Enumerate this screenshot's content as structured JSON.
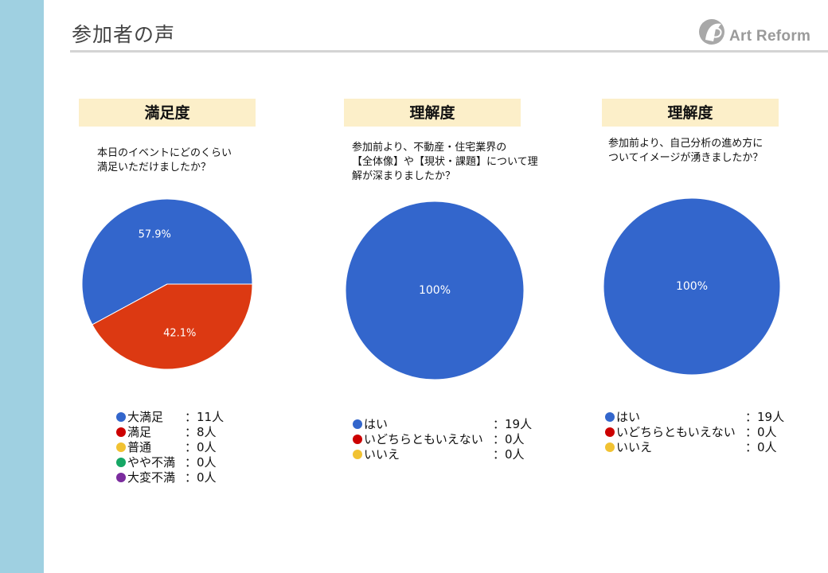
{
  "page": {
    "title": "参加者の声"
  },
  "logo": {
    "text": "Art Reform"
  },
  "colors": {
    "sidebar": "#9fd0e1",
    "header_bg": "#fcefc9",
    "blue": "#3366cc",
    "red": "#dc3912",
    "orange": "#ff9900",
    "green": "#109618",
    "purple": "#990099"
  },
  "panels": [
    {
      "header": "満足度",
      "question": "本日のイベントにどのくらい\n満足いただけましたか？"
    },
    {
      "header": "理解度",
      "question": "参加前より、不動産・住宅業界の\n【全体像】や【現状・課題】について理\n解が深まりましたか？"
    },
    {
      "header": "理解度",
      "question": "参加前より、自己分析の進め方に\nついてイメージが湧きましたか？"
    }
  ],
  "chart_data": [
    {
      "type": "pie",
      "title": "満足度",
      "slices": [
        {
          "label": "大満足",
          "value": 57.9,
          "color": "#3366cc",
          "display": "57.9%"
        },
        {
          "label": "満足",
          "value": 42.1,
          "color": "#dc3912",
          "display": "42.1%"
        }
      ],
      "legend": [
        {
          "label": "大満足",
          "count": "：11人",
          "color": "#3366cc"
        },
        {
          "label": "満足",
          "count": "：8人",
          "color": "#cc0000"
        },
        {
          "label": "普通",
          "count": "：0人",
          "color": "#f1c232"
        },
        {
          "label": "やや不満",
          "count": "：0人",
          "color": "#16a765"
        },
        {
          "label": "大変不満",
          "count": "：0人",
          "color": "#7b2c9e"
        }
      ]
    },
    {
      "type": "pie",
      "title": "理解度",
      "slices": [
        {
          "label": "はい",
          "value": 100,
          "color": "#3366cc",
          "display": "100%"
        }
      ],
      "legend": [
        {
          "label": "はい",
          "count": "：19人",
          "color": "#3366cc"
        },
        {
          "label": "いどちらともいえない",
          "count": "：0人",
          "color": "#cc0000"
        },
        {
          "label": "いいえ",
          "count": "：0人",
          "color": "#f1c232"
        }
      ]
    },
    {
      "type": "pie",
      "title": "理解度",
      "slices": [
        {
          "label": "はい",
          "value": 100,
          "color": "#3366cc",
          "display": "100%"
        }
      ],
      "legend": [
        {
          "label": "はい",
          "count": "：19人",
          "color": "#3366cc"
        },
        {
          "label": "いどちらともいえない",
          "count": "：0人",
          "color": "#cc0000"
        },
        {
          "label": "いいえ",
          "count": "：0人",
          "color": "#f1c232"
        }
      ]
    }
  ]
}
